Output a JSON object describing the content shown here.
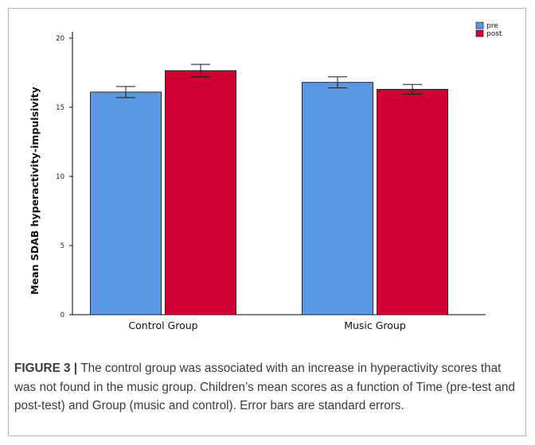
{
  "chart_data": {
    "type": "bar",
    "ylabel": "Mean SDAB hyperactivity-impulsivity",
    "xlabel": "",
    "ylim": [
      0,
      20
    ],
    "yticks": [
      "0",
      "5",
      "10",
      "15",
      "20"
    ],
    "categories": [
      "Control Group",
      "Music Group"
    ],
    "series": [
      {
        "name": "pre",
        "color": "#5a98e3",
        "values": [
          16.1,
          16.8
        ],
        "errors": [
          0.4,
          0.4
        ]
      },
      {
        "name": "post",
        "color": "#d00032",
        "values": [
          17.65,
          16.3
        ],
        "errors": [
          0.45,
          0.35
        ]
      }
    ],
    "legend_position": "top-right",
    "grid": false,
    "error_bars": "standard errors"
  },
  "caption": {
    "label": "FIGURE 3",
    "separator": " | ",
    "text": "The control group was associated with an increase in hyperactivity scores that was not found in the music group. Children’s mean scores as a function of Time (pre-test and post-test) and Group (music and control). Error bars are standard errors."
  }
}
